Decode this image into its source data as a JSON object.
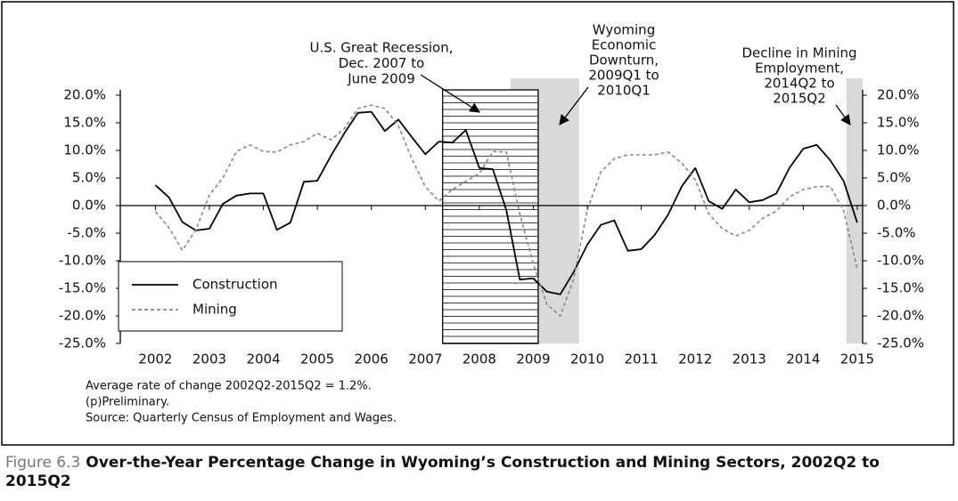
{
  "chart_data": {
    "type": "line",
    "figure_label": "Figure 6.3",
    "title": "Over-the-Year Percentage Change in Wyoming’s Construction and Mining Sectors, 2002Q2 to 2015Q2",
    "x": [
      2002,
      2002.25,
      2002.5,
      2002.75,
      2003,
      2003.25,
      2003.5,
      2003.75,
      2004,
      2004.25,
      2004.5,
      2004.75,
      2005,
      2005.25,
      2005.5,
      2005.75,
      2006,
      2006.25,
      2006.5,
      2006.75,
      2007,
      2007.25,
      2007.5,
      2007.75,
      2008,
      2008.25,
      2008.5,
      2008.75,
      2009,
      2009.25,
      2009.5,
      2009.75,
      2010,
      2010.25,
      2010.5,
      2010.75,
      2011,
      2011.25,
      2011.5,
      2011.75,
      2012,
      2012.25,
      2012.5,
      2012.75,
      2013,
      2013.25,
      2013.5,
      2013.75,
      2014,
      2014.25,
      2014.5,
      2014.75,
      2015
    ],
    "series": [
      {
        "name": "Construction",
        "color": "#000000",
        "dash": false,
        "values": [
          3.7,
          1.5,
          -3,
          -4.5,
          -4.2,
          0.3,
          1.8,
          2.2,
          2.2,
          -4.4,
          -3.1,
          4.3,
          4.5,
          9,
          13.1,
          16.8,
          17,
          13.5,
          15.6,
          12.4,
          9.3,
          11.6,
          11.4,
          13.7,
          6.8,
          6.6,
          -0.8,
          -13.4,
          -13.2,
          -15.6,
          -16.1,
          -12,
          -7.1,
          -3.5,
          -2.7,
          -8.2,
          -7.9,
          -5.3,
          -1.6,
          3.5,
          6.8,
          0.8,
          -0.6,
          2.9,
          0.6,
          1,
          2.2,
          6.9,
          10.3,
          11,
          8.2,
          4.4,
          -3.1
        ]
      },
      {
        "name": "Mining",
        "color": "#888888",
        "dash": true,
        "values": [
          -1.1,
          -4,
          -8.1,
          -4.4,
          1.9,
          5,
          9.8,
          11,
          9.8,
          9.7,
          11,
          11.6,
          13.1,
          11.9,
          13.9,
          17.6,
          18.2,
          17.6,
          14.5,
          8.5,
          3.4,
          0.8,
          2.9,
          4.4,
          5.8,
          9.8,
          9.7,
          -1.5,
          -10.6,
          -17.9,
          -20,
          -13.2,
          -0.8,
          6.1,
          8.5,
          9.2,
          9.2,
          9.2,
          9.7,
          7.7,
          4.7,
          -1.5,
          -4.2,
          -5.5,
          -4.5,
          -2.3,
          -1,
          1.6,
          2.9,
          3.4,
          3.5,
          -1,
          -11.5
        ]
      }
    ],
    "xlim": [
      2001.35,
      2015.1
    ],
    "xticks": [
      2002,
      2003,
      2004,
      2005,
      2006,
      2007,
      2008,
      2009,
      2010,
      2011,
      2012,
      2013,
      2014,
      2015
    ],
    "ylim": [
      -25,
      20
    ],
    "yticks": [
      {
        "value": 20,
        "label": "20.0%"
      },
      {
        "value": 15,
        "label": "15.0%"
      },
      {
        "value": 10,
        "label": "10.0%"
      },
      {
        "value": 5,
        "label": "5.0%"
      },
      {
        "value": 0,
        "label": "0.0%"
      },
      {
        "value": -5,
        "label": "-5.0%"
      },
      {
        "value": -10,
        "label": "-10.0%"
      },
      {
        "value": -15,
        "label": "-15.0%"
      },
      {
        "value": -20,
        "label": "-20.0%"
      },
      {
        "value": -25,
        "label": "-25.0%"
      }
    ],
    "y2lim": [
      -25,
      20
    ],
    "y2ticks": [
      {
        "value": 20,
        "label": "20.0%"
      },
      {
        "value": 15,
        "label": "15.0%"
      },
      {
        "value": 10,
        "label": "10.0%"
      },
      {
        "value": 5,
        "label": "5.0%"
      },
      {
        "value": 0,
        "label": "0.0%"
      },
      {
        "value": -5,
        "label": "-5.0%"
      },
      {
        "value": -10,
        "label": "-10.0%"
      },
      {
        "value": -15,
        "label": "-15.0%"
      },
      {
        "value": -20,
        "label": "-20.0%"
      },
      {
        "value": -25,
        "label": "-25.0%"
      }
    ],
    "legend": "lower-left",
    "shaded_periods": [
      {
        "x": [
          2008.58,
          2009.85
        ],
        "fill": "#d9d9d9"
      },
      {
        "x": [
          2014.8,
          2015.1
        ],
        "fill": "#d9d9d9"
      },
      {
        "x": [
          2007.32,
          2009.09
        ],
        "fill": "hatch"
      }
    ],
    "annotations": [
      {
        "lines": [
          "U.S. Great Recession,",
          "Dec. 2007 to",
          "June 2009"
        ]
      },
      {
        "lines": [
          "Wyoming",
          "Economic",
          "Downturn,",
          "2009Q1 to",
          "2010Q1"
        ]
      },
      {
        "lines": [
          "Decline in Mining",
          "Employment,",
          "2014Q2 to",
          "2015Q2"
        ]
      }
    ],
    "notes": [
      "Average rate of change 2002Q2-2015Q2 = 1.2%.",
      "(p)Preliminary.",
      "Source: Quarterly Census of Employment and Wages."
    ]
  }
}
